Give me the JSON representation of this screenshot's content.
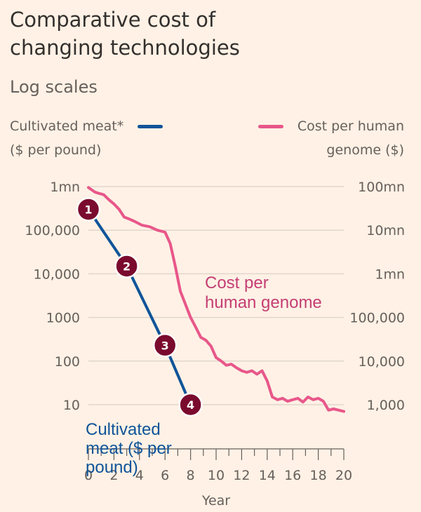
{
  "header": {
    "title_line1": "Comparative cost of",
    "title_line2": "changing technologies",
    "subtitle": "Log scales"
  },
  "legend": {
    "left_line1": "Cultivated meat*",
    "left_line2": "($ per pound)",
    "right_line1": "Cost per human",
    "right_line2": "genome ($)"
  },
  "colors": {
    "background": "#fff1e5",
    "meat": "#0f5499",
    "genome": "#e8578a",
    "genome_label": "#c43e74",
    "badge": "#7a0a2e",
    "grid": "#e2d6cb",
    "axis": "#66605c"
  },
  "chart_data": {
    "type": "line",
    "title": "Comparative cost of changing technologies",
    "subtitle": "Log scales",
    "xlabel": "Year",
    "xlim": [
      0,
      20
    ],
    "x_ticks": [
      "0",
      "2",
      "4",
      "6",
      "8",
      "10",
      "12",
      "14",
      "16",
      "18",
      "20"
    ],
    "y_left": {
      "label": "Cultivated meat* ($ per pound)",
      "scale": "log",
      "ylim": [
        10,
        1000000
      ],
      "ticks": [
        {
          "value": 1000000,
          "label": "1mn"
        },
        {
          "value": 100000,
          "label": "100,000"
        },
        {
          "value": 10000,
          "label": "10,000"
        },
        {
          "value": 1000,
          "label": "1000"
        },
        {
          "value": 100,
          "label": "100"
        },
        {
          "value": 10,
          "label": "10"
        }
      ]
    },
    "y_right": {
      "label": "Cost per human genome ($)",
      "scale": "log",
      "ylim": [
        1000,
        100000000
      ],
      "ticks": [
        {
          "value": 100000000,
          "label": "100mn"
        },
        {
          "value": 10000000,
          "label": "10mn"
        },
        {
          "value": 1000000,
          "label": "1mn"
        },
        {
          "value": 100000,
          "label": "100,000"
        },
        {
          "value": 10000,
          "label": "10,000"
        },
        {
          "value": 1000,
          "label": "1,000"
        }
      ]
    },
    "series": [
      {
        "name": "Cultivated meat ($ per pound)",
        "axis": "left",
        "x": [
          0,
          3,
          6,
          8
        ],
        "y": [
          300000,
          15000,
          230,
          10
        ],
        "markers": [
          "1",
          "2",
          "3",
          "4"
        ]
      },
      {
        "name": "Cost per human genome ($)",
        "axis": "right",
        "x": [
          0,
          0.5,
          0.8,
          1.2,
          1.6,
          2.0,
          2.4,
          2.8,
          3.2,
          3.6,
          4.2,
          4.8,
          5.4,
          6.0,
          6.4,
          6.8,
          7.2,
          7.6,
          8.0,
          8.4,
          8.8,
          9.2,
          9.6,
          10.0,
          10.4,
          10.8,
          11.2,
          11.6,
          12.0,
          12.4,
          12.8,
          13.2,
          13.6,
          14.0,
          14.4,
          14.8,
          15.2,
          15.6,
          16.0,
          16.4,
          16.8,
          17.2,
          17.6,
          18.0,
          18.4,
          18.8,
          19.2,
          19.6,
          20.0
        ],
        "y": [
          95000000,
          75000000,
          70000000,
          65000000,
          50000000,
          40000000,
          30000000,
          20000000,
          18000000,
          16000000,
          13000000,
          12000000,
          10000000,
          9000000,
          5000000,
          1500000,
          400000,
          200000,
          100000,
          60000,
          35000,
          30000,
          22000,
          12000,
          10000,
          8000,
          8500,
          7000,
          6000,
          5500,
          6000,
          5000,
          6000,
          3500,
          1500,
          1300,
          1400,
          1200,
          1300,
          1400,
          1150,
          1500,
          1300,
          1400,
          1200,
          750,
          800,
          750,
          700
        ]
      }
    ],
    "annotations": [
      {
        "text_line1": "Cost per",
        "text_line2": "human genome",
        "series": "Cost per human genome ($)"
      },
      {
        "text_line1": "Cultivated",
        "text_line2": "meat ($ per",
        "text_line3": "pound)",
        "series": "Cultivated meat ($ per pound)"
      }
    ]
  }
}
